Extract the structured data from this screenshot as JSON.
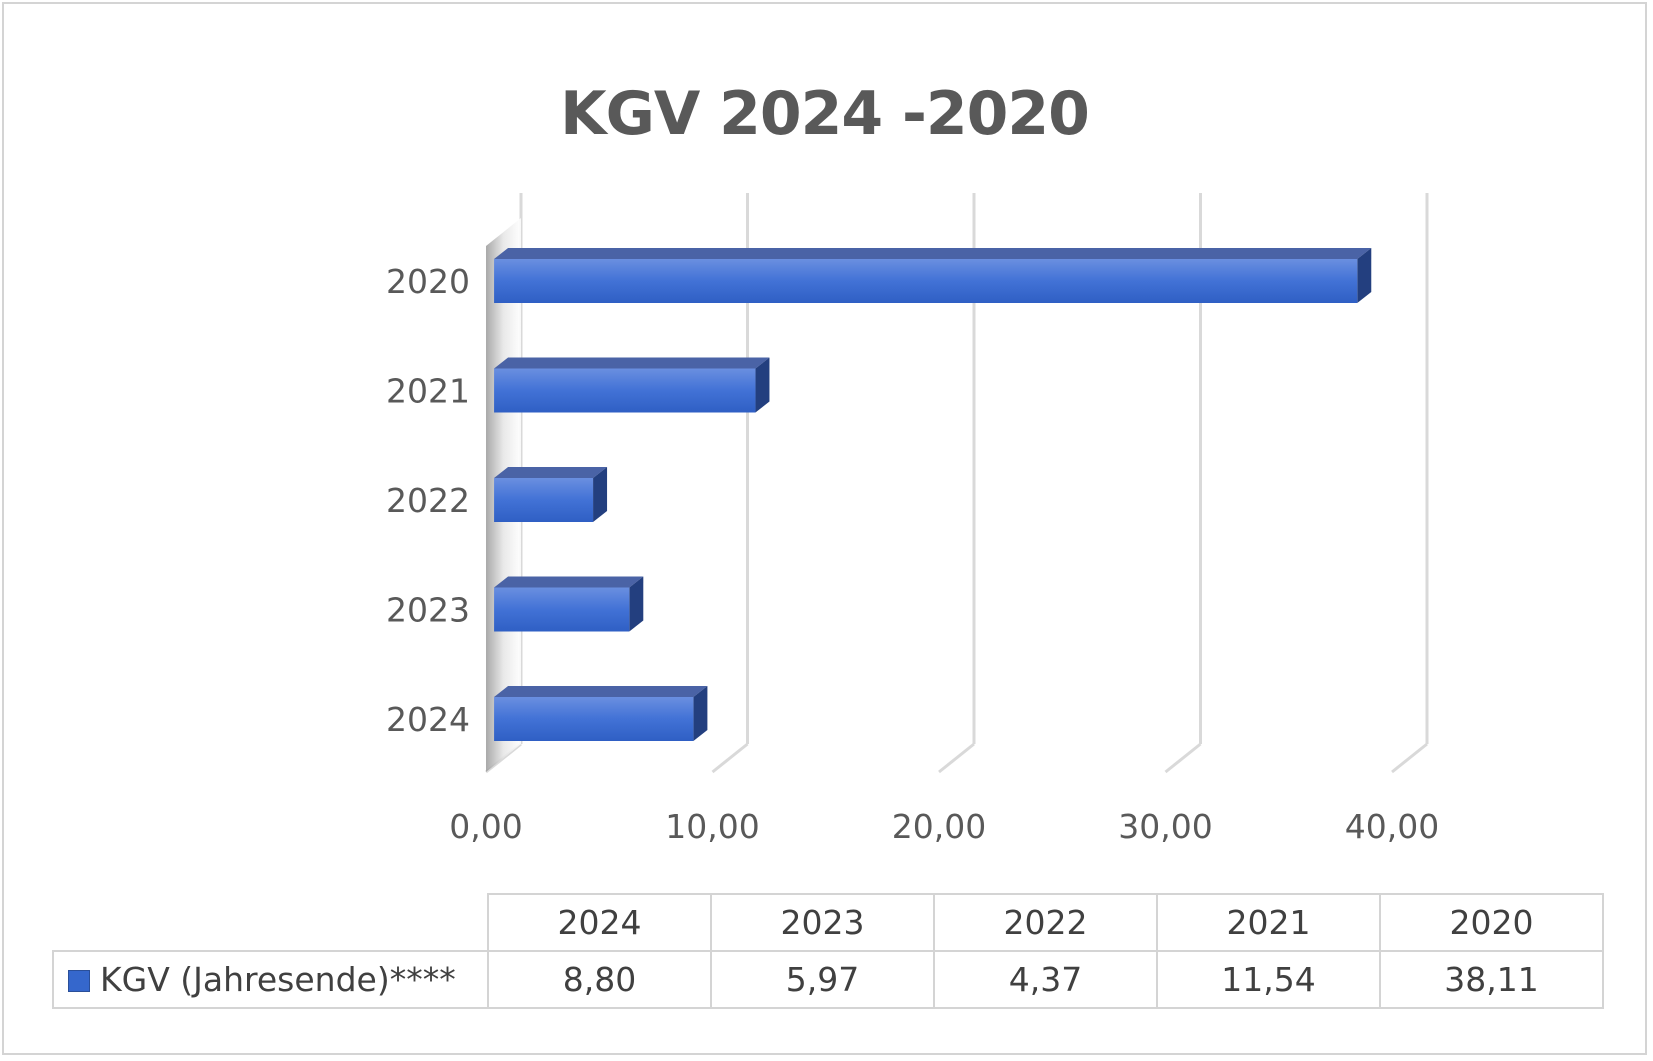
{
  "chart_data": {
    "type": "bar",
    "orientation": "horizontal",
    "three_d": true,
    "title": "KGV 2024 -2020",
    "categories": [
      "2024",
      "2023",
      "2022",
      "2021",
      "2020"
    ],
    "series": [
      {
        "name": "KGV (Jahresende)****",
        "values": [
          8.8,
          5.97,
          4.37,
          11.54,
          38.11
        ]
      }
    ],
    "xlim": [
      0,
      40
    ],
    "x_ticks": [
      "0,00",
      "10,00",
      "20,00",
      "30,00",
      "40,00"
    ],
    "grid": true,
    "legend": "data-table",
    "colors": {
      "bar": "#3567cc",
      "bar_top": "#4a63a6",
      "bar_side": "#233f7f",
      "grid": "#d9d9d9",
      "text": "#595959"
    }
  },
  "data_table": {
    "header": [
      "2024",
      "2023",
      "2022",
      "2021",
      "2020"
    ],
    "row_label": "KGV (Jahresende)****",
    "row_values": [
      "8,80",
      "5,97",
      "4,37",
      "11,54",
      "38,11"
    ]
  }
}
